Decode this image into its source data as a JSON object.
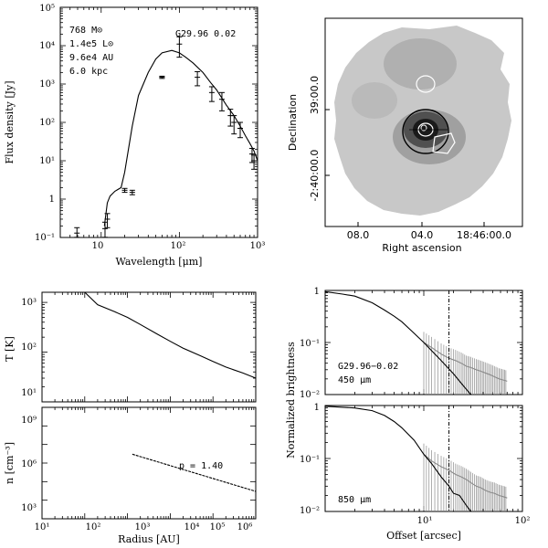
{
  "chart_data": [
    {
      "type": "scatter",
      "panel": "sed",
      "xlabel": "Wavelength [μm]",
      "ylabel": "Flux density [Jy]",
      "xscale": "log",
      "yscale": "log",
      "xlim": [
        3,
        1000
      ],
      "ylim": [
        0.1,
        100000
      ],
      "x_ticks": [
        "10",
        "10²",
        "10³"
      ],
      "y_ticks": [
        "10⁻¹",
        "1",
        "10¹",
        "10²",
        "10³",
        "10⁴",
        "10⁵"
      ],
      "annotations": [
        "768 M⊙",
        "1.4e5 L⊙",
        "9.6e4 AU",
        "6.0 kpc"
      ],
      "source_label": "G29.96   0.02",
      "points": [
        {
          "x": 4.9,
          "y": 0.13,
          "err": 0.05
        },
        {
          "x": 11.2,
          "y": 0.17,
          "err": 0.08
        },
        {
          "x": 12.0,
          "y": 0.3,
          "err": 0.12
        },
        {
          "x": 20,
          "y": 1.7,
          "err": 0.2
        },
        {
          "x": 25,
          "y": 1.5,
          "err": 0.2
        },
        {
          "x": 60,
          "y": 1500,
          "err": 100
        },
        {
          "x": 100,
          "y": 11000,
          "err": 6000
        },
        {
          "x": 170,
          "y": 1500,
          "err": 600
        },
        {
          "x": 260,
          "y": 600,
          "err": 250
        },
        {
          "x": 350,
          "y": 400,
          "err": 200
        },
        {
          "x": 450,
          "y": 150,
          "err": 70
        },
        {
          "x": 500,
          "y": 100,
          "err": 50
        },
        {
          "x": 600,
          "y": 70,
          "err": 30
        },
        {
          "x": 850,
          "y": 15,
          "err": 6
        },
        {
          "x": 900,
          "y": 10,
          "err": 4
        }
      ],
      "model": {
        "x": [
          11,
          12,
          13,
          15,
          18,
          20,
          25,
          30,
          40,
          50,
          60,
          80,
          100,
          120,
          150,
          200,
          250,
          300,
          400,
          500,
          600,
          700,
          800,
          900,
          1000
        ],
        "y": [
          0.2,
          0.8,
          1.2,
          1.6,
          2.0,
          5,
          80,
          500,
          2000,
          4500,
          6500,
          7500,
          6500,
          5000,
          3500,
          2000,
          1100,
          700,
          280,
          150,
          80,
          45,
          28,
          18,
          10
        ]
      }
    },
    {
      "type": "image",
      "panel": "map",
      "xlabel": "Right ascension",
      "ylabel": "Declination",
      "x_ticks": [
        "08.0",
        "04.0",
        "18:46:00.0"
      ],
      "y_ticks": [
        "-2:40:00.0",
        "39:00.0"
      ]
    },
    {
      "type": "line",
      "panel": "temperature",
      "xscale": "log",
      "yscale": "log",
      "ylabel": "T [K]",
      "xlim": [
        10,
        1000000
      ],
      "ylim": [
        10,
        1600
      ],
      "y_ticks": [
        "10¹",
        "10²",
        "10³"
      ],
      "series": [
        {
          "name": "T",
          "x": [
            100,
            200,
            500,
            1000,
            2000,
            5000,
            10000,
            20000,
            50000,
            100000,
            200000,
            500000,
            1000000
          ],
          "y": [
            1600,
            900,
            650,
            500,
            360,
            230,
            165,
            120,
            85,
            65,
            50,
            38,
            30
          ]
        }
      ]
    },
    {
      "type": "line",
      "panel": "density",
      "xscale": "log",
      "yscale": "log",
      "xlabel": "Radius [AU]",
      "ylabel": "n [cm⁻³]",
      "xlim": [
        10,
        1000000
      ],
      "ylim": [
        1000,
        1000000000
      ],
      "x_ticks": [
        "10¹",
        "10²",
        "10³",
        "10⁴",
        "10⁵",
        "10⁶"
      ],
      "y_ticks": [
        "10³",
        "10⁶",
        "10⁹"
      ],
      "annotation": "p = 1.40",
      "series": [
        {
          "name": "n",
          "x": [
            1300,
            1000000
          ],
          "y": [
            3000000,
            30000
          ]
        }
      ]
    },
    {
      "type": "line",
      "panel": "profile_450",
      "xscale": "log",
      "yscale": "log",
      "ylabel": "Normalized brightness",
      "xlim": [
        1,
        100
      ],
      "ylim": [
        0.01,
        1
      ],
      "y_ticks": [
        "10⁻²",
        "10⁻¹",
        "1"
      ],
      "label_source": "G29.96−0.02",
      "label_wave": "450  μm",
      "vline_x": 18,
      "model": {
        "x": [
          1,
          1.5,
          2,
          3,
          4,
          5,
          6,
          8,
          10,
          15,
          20,
          25,
          30
        ],
        "y": [
          0.95,
          0.85,
          0.78,
          0.58,
          0.42,
          0.32,
          0.25,
          0.15,
          0.1,
          0.045,
          0.025,
          0.015,
          0.01
        ]
      },
      "observed": {
        "x": [
          10,
          12,
          15,
          18,
          21,
          24,
          27,
          30,
          34,
          38,
          42,
          47,
          52,
          58,
          64,
          70
        ],
        "y": [
          0.1,
          0.08,
          0.06,
          0.05,
          0.045,
          0.04,
          0.035,
          0.033,
          0.03,
          0.028,
          0.026,
          0.024,
          0.022,
          0.02,
          0.019,
          0.018
        ]
      }
    },
    {
      "type": "line",
      "panel": "profile_850",
      "xscale": "log",
      "yscale": "log",
      "xlabel": "Offset [arcsec]",
      "ylabel": "Normalized brightness",
      "xlim": [
        1,
        100
      ],
      "ylim": [
        0.01,
        1
      ],
      "x_ticks": [
        "10¹",
        "10²"
      ],
      "y_ticks": [
        "10⁻²",
        "10⁻¹",
        "1"
      ],
      "label_wave": "850  μm",
      "vline_x": 18,
      "model": {
        "x": [
          1,
          2,
          3,
          4,
          5,
          6,
          8,
          10,
          12,
          15,
          18,
          20,
          23,
          25,
          27,
          30
        ],
        "y": [
          0.97,
          0.9,
          0.8,
          0.65,
          0.5,
          0.38,
          0.22,
          0.12,
          0.08,
          0.045,
          0.03,
          0.022,
          0.02,
          0.016,
          0.013,
          0.01
        ]
      },
      "observed": {
        "x": [
          10,
          12,
          15,
          18,
          21,
          24,
          27,
          30,
          34,
          38,
          42,
          47,
          52,
          58,
          64,
          70
        ],
        "y": [
          0.12,
          0.09,
          0.07,
          0.06,
          0.05,
          0.045,
          0.04,
          0.035,
          0.03,
          0.028,
          0.025,
          0.023,
          0.022,
          0.02,
          0.019,
          0.018
        ]
      }
    }
  ]
}
